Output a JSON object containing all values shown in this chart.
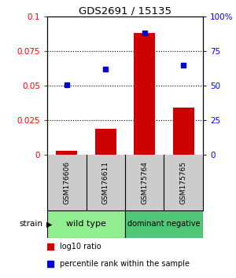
{
  "title": "GDS2691 / 15135",
  "samples": [
    "GSM176606",
    "GSM176611",
    "GSM175764",
    "GSM175765"
  ],
  "log10_ratio": [
    0.003,
    0.019,
    0.088,
    0.034
  ],
  "percentile_rank_pct": [
    51,
    62,
    88,
    65
  ],
  "groups": [
    {
      "label": "wild type",
      "samples": [
        0,
        1
      ],
      "color": "#90EE90"
    },
    {
      "label": "dominant negative",
      "samples": [
        2,
        3
      ],
      "color": "#50C878"
    }
  ],
  "ylim_left": [
    0,
    0.1
  ],
  "ylim_right": [
    0,
    100
  ],
  "yticks_left": [
    0,
    0.025,
    0.05,
    0.075,
    0.1
  ],
  "yticks_right": [
    0,
    25,
    50,
    75,
    100
  ],
  "bar_color": "#CC0000",
  "dot_color": "#0000CC",
  "bar_width": 0.55,
  "sample_box_color": "#CCCCCC",
  "legend_red_label": "log10 ratio",
  "legend_blue_label": "percentile rank within the sample",
  "strain_label": "strain",
  "background_color": "#FFFFFF",
  "plot_bg_color": "#FFFFFF",
  "gridline_y": [
    0.025,
    0.05,
    0.075
  ]
}
